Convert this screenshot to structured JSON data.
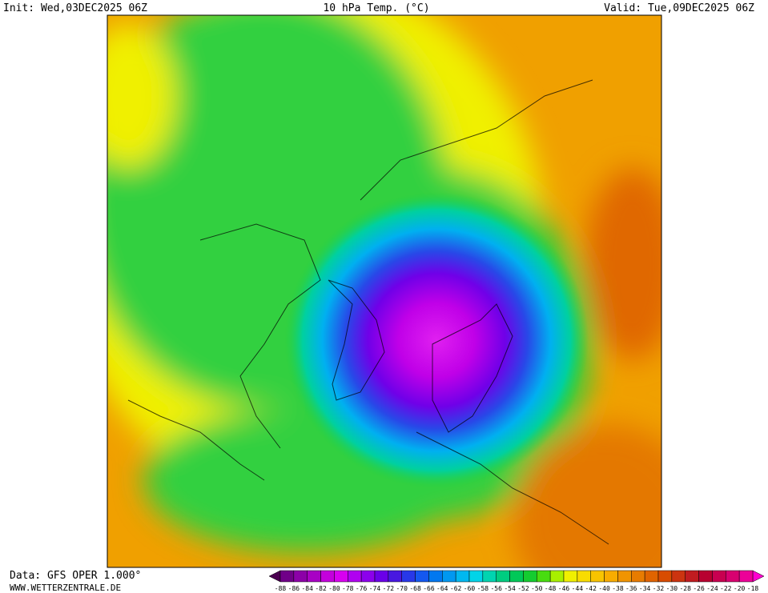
{
  "header": {
    "init": "Init: Wed,03DEC2025 06Z",
    "title": "10 hPa Temp. (°C)",
    "valid": "Valid: Tue,09DEC2025 06Z"
  },
  "footer": {
    "source": "Data: GFS OPER 1.000°",
    "site": "WWW.WETTERZENTRALE.DE"
  },
  "colorbar": {
    "ticks": [
      -88,
      -86,
      -84,
      -82,
      -80,
      -78,
      -76,
      -74,
      -72,
      -70,
      -68,
      -66,
      -64,
      -62,
      -60,
      -58,
      -56,
      -54,
      -52,
      -50,
      -48,
      -46,
      -44,
      -42,
      -40,
      -38,
      -36,
      -34,
      -32,
      -30,
      -28,
      -26,
      -24,
      -22,
      -20,
      -18
    ],
    "colors": [
      "#4a0050",
      "#700088",
      "#8c00a8",
      "#a800c4",
      "#c400dc",
      "#d800f0",
      "#b000f0",
      "#8c00ec",
      "#6a00e8",
      "#4818e0",
      "#2838e8",
      "#1458f0",
      "#0078f0",
      "#0098f0",
      "#00b8f0",
      "#00d4e8",
      "#00d4b0",
      "#00cc80",
      "#00c858",
      "#14cc30",
      "#48dc10",
      "#a8f000",
      "#f0f000",
      "#f8dc00",
      "#f8c400",
      "#f8ac00",
      "#f09400",
      "#e87c00",
      "#e06400",
      "#d84c00",
      "#cc3410",
      "#c01c20",
      "#b80030",
      "#c80050",
      "#d80070",
      "#ec0098",
      "#ff00d0"
    ]
  }
}
